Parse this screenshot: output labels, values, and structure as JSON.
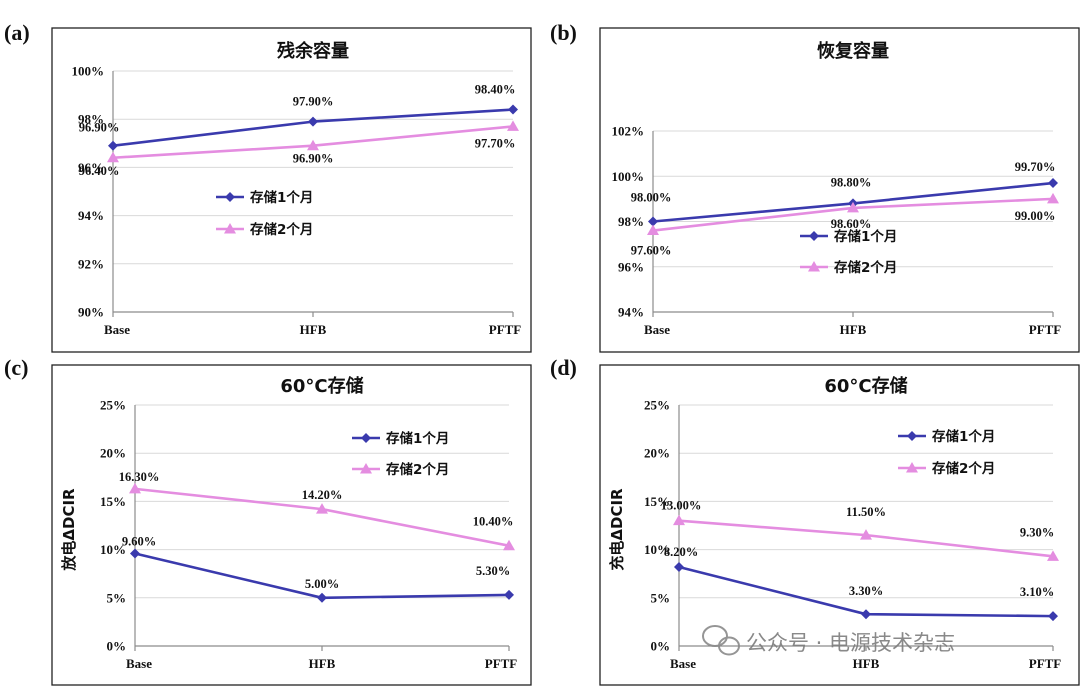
{
  "watermark": {
    "text": "公众号 · 电源技术杂志",
    "icon": "wechat-icon"
  },
  "colors": {
    "series_1": "#3a3aad",
    "series_2": "#e48de0",
    "grid": "#d9d9d9",
    "axis": "#8c8c8c"
  },
  "chart_data": [
    {
      "panel": "(a)",
      "type": "line",
      "title": "残余容量",
      "ylabel": "",
      "categories": [
        "Base",
        "HFB",
        "PFTF"
      ],
      "ylim": [
        90,
        100
      ],
      "ystep": 2,
      "legend_position": "lower-left",
      "series": [
        {
          "name": "存储1个月",
          "marker": "diamond",
          "values": [
            96.9,
            97.9,
            98.4
          ],
          "labels": [
            "96.90%",
            "97.90%",
            "98.40%"
          ],
          "label_pos": [
            "above",
            "above",
            "above"
          ]
        },
        {
          "name": "存储2个月",
          "marker": "triangle",
          "values": [
            96.4,
            96.9,
            97.7
          ],
          "labels": [
            "96.40%",
            "96.90%",
            "97.70%"
          ],
          "label_pos": [
            "below",
            "below",
            "below"
          ]
        }
      ],
      "tick_labels": [
        "90%",
        "92%",
        "94%",
        "96%",
        "98%",
        "100%"
      ]
    },
    {
      "panel": "(b)",
      "type": "line",
      "title": "恢复容量",
      "ylabel": "",
      "categories": [
        "Base",
        "HFB",
        "PFTF"
      ],
      "ylim": [
        94,
        102
      ],
      "ystep": 2,
      "legend_position": "lower-right",
      "series": [
        {
          "name": "存储1个月",
          "marker": "diamond",
          "values": [
            98.0,
            98.8,
            99.7
          ],
          "labels": [
            "98.00%",
            "98.80%",
            "99.70%"
          ],
          "label_pos": [
            "above",
            "above",
            "above"
          ]
        },
        {
          "name": "存储2个月",
          "marker": "triangle",
          "values": [
            97.6,
            98.6,
            99.0
          ],
          "labels": [
            "97.60%",
            "98.60%",
            "99.00%"
          ],
          "label_pos": [
            "below",
            "below",
            "below"
          ]
        }
      ],
      "tick_labels": [
        "94%",
        "96%",
        "98%",
        "100%",
        "102%"
      ]
    },
    {
      "panel": "(c)",
      "type": "line",
      "title": "60°C存储",
      "ylabel": "放电ΔDCIR",
      "categories": [
        "Base",
        "HFB",
        "PFTF"
      ],
      "ylim": [
        0,
        25
      ],
      "ystep": 5,
      "legend_position": "top-right",
      "series": [
        {
          "name": "存储1个月",
          "marker": "diamond",
          "values": [
            9.6,
            5.0,
            5.3
          ],
          "labels": [
            "9.60%",
            "5.00%",
            "5.30%"
          ],
          "label_pos": [
            "above",
            "above",
            "above"
          ]
        },
        {
          "name": "存储2个月",
          "marker": "triangle",
          "values": [
            16.3,
            14.2,
            10.4
          ],
          "labels": [
            "16.30%",
            "14.20%",
            "10.40%"
          ],
          "label_pos": [
            "above",
            "above",
            "above"
          ]
        }
      ],
      "tick_labels": [
        "0%",
        "5%",
        "10%",
        "15%",
        "20%",
        "25%"
      ]
    },
    {
      "panel": "(d)",
      "type": "line",
      "title": "60°C存储",
      "ylabel": "充电ΔDCIR",
      "categories": [
        "Base",
        "HFB",
        "PFTF"
      ],
      "ylim": [
        0,
        25
      ],
      "ystep": 5,
      "legend_position": "top-right",
      "series": [
        {
          "name": "存储1个月",
          "marker": "diamond",
          "values": [
            8.2,
            3.3,
            3.1
          ],
          "labels": [
            "8.20%",
            "3.30%",
            "3.10%"
          ],
          "label_pos": [
            "above",
            "above",
            "above"
          ]
        },
        {
          "name": "存储2个月",
          "marker": "triangle",
          "values": [
            13.0,
            11.5,
            9.3
          ],
          "labels": [
            "13.00%",
            "11.50%",
            "9.30%"
          ],
          "label_pos": [
            "above",
            "above",
            "above"
          ]
        }
      ],
      "tick_labels": [
        "0%",
        "5%",
        "10%",
        "15%",
        "20%",
        "25%"
      ]
    }
  ]
}
